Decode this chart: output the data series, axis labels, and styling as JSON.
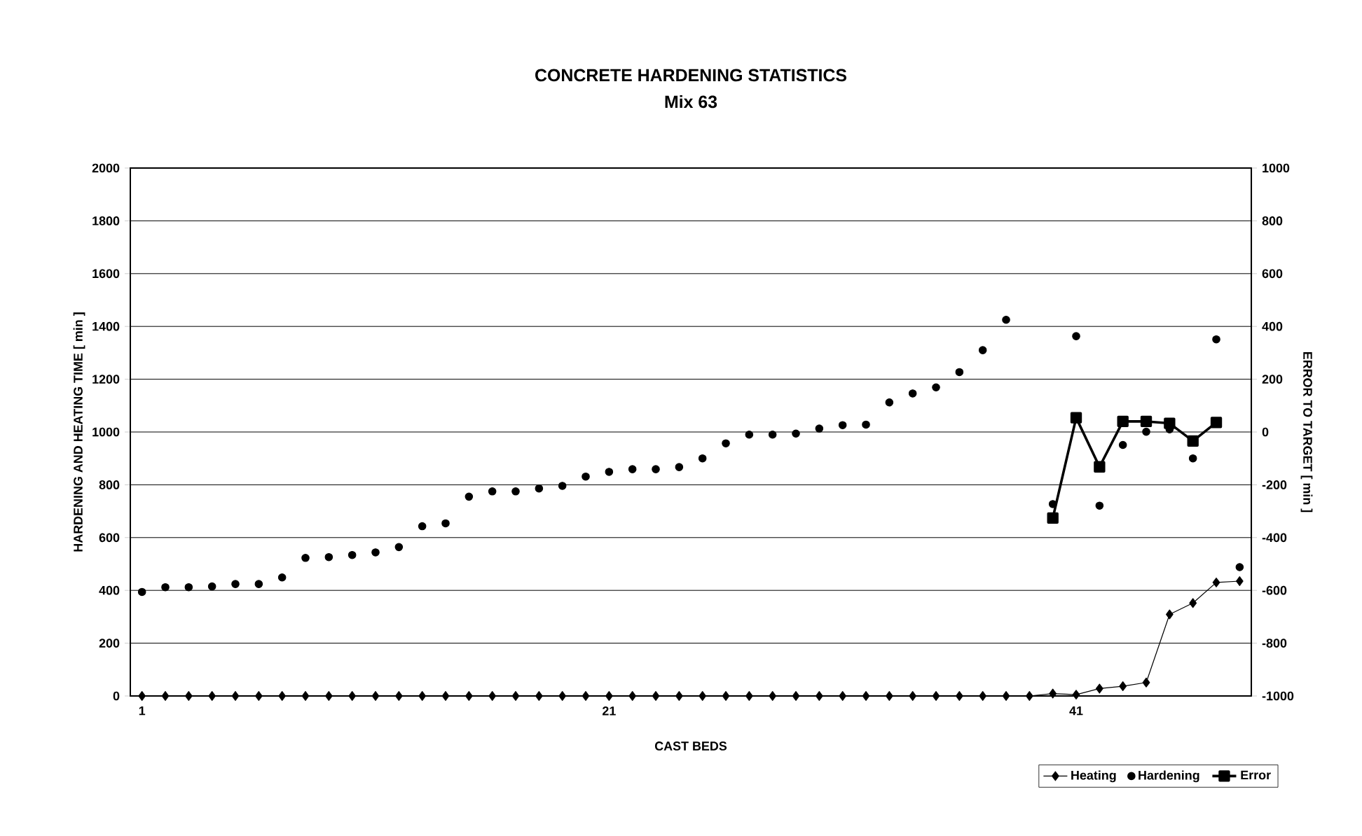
{
  "chart_data": {
    "type": "line",
    "title": "CONCRETE HARDENING STATISTICS",
    "subtitle": "Mix 63",
    "xlabel": "CAST BEDS",
    "ylabel": "HARDENING AND HEATING TIME [ min ]",
    "y2label": "ERROR TO TARGET [ min ]",
    "categories": [
      "1",
      null,
      null,
      null,
      null,
      null,
      null,
      null,
      null,
      null,
      null,
      null,
      null,
      null,
      null,
      null,
      null,
      null,
      null,
      null,
      "21",
      null,
      null,
      null,
      null,
      null,
      null,
      null,
      null,
      null,
      null,
      null,
      null,
      null,
      null,
      null,
      null,
      null,
      null,
      null,
      "41",
      null,
      null,
      null,
      null,
      null,
      null,
      null
    ],
    "series": [
      {
        "name": "Heating",
        "color": "#000000",
        "marker": "diamond",
        "values": [
          0,
          0,
          0,
          0,
          0,
          0,
          0,
          0,
          0,
          0,
          0,
          0,
          0,
          0,
          0,
          0,
          0,
          0,
          0,
          0,
          0,
          0,
          0,
          0,
          0,
          0,
          0,
          0,
          0,
          0,
          0,
          0,
          0,
          0,
          0,
          0,
          0,
          0,
          0,
          9,
          5,
          28,
          37,
          51,
          309,
          352,
          430,
          435
        ]
      },
      {
        "name": "Hardening",
        "type": "scatter",
        "color": "#000000",
        "marker": "circle",
        "values": [
          394,
          412,
          412,
          415,
          424,
          424,
          449,
          523,
          526,
          534,
          544,
          564,
          643,
          654,
          755,
          775,
          775,
          786,
          796,
          831,
          849,
          859,
          859,
          867,
          900,
          957,
          990,
          990,
          994,
          1013,
          1026,
          1028,
          1112,
          1146,
          1169,
          1227,
          1310,
          1425,
          null,
          727,
          1363,
          721,
          951,
          1001,
          1010,
          900,
          1351,
          488
        ]
      },
      {
        "name": "Error",
        "color": "#000000",
        "marker": "square",
        "axis": "y2",
        "values": [
          null,
          null,
          null,
          null,
          null,
          null,
          null,
          null,
          null,
          null,
          null,
          null,
          null,
          null,
          null,
          null,
          null,
          null,
          null,
          null,
          null,
          null,
          null,
          null,
          null,
          null,
          null,
          null,
          null,
          null,
          null,
          null,
          null,
          null,
          null,
          null,
          null,
          null,
          null,
          -326,
          54,
          -132,
          40,
          40,
          33,
          -34,
          36,
          null
        ]
      }
    ],
    "ylim": [
      0,
      2000
    ],
    "yticks": [
      0,
      200,
      400,
      600,
      800,
      1000,
      1200,
      1400,
      1600,
      1800,
      2000
    ],
    "y2lim": [
      -1000,
      1000
    ],
    "y2ticks": [
      -1000,
      -800,
      -600,
      -400,
      -200,
      0,
      200,
      400,
      600,
      800,
      1000
    ],
    "grid": "y",
    "legend": "bottom right"
  }
}
